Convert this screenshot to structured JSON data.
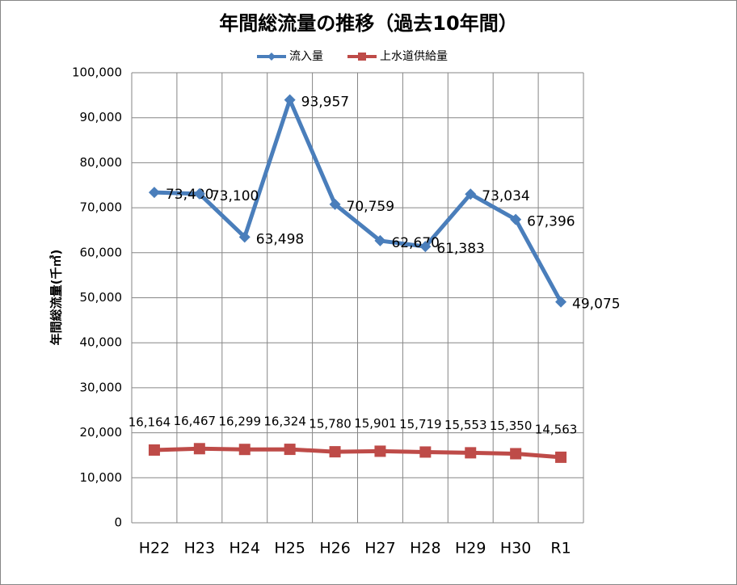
{
  "chart_data": {
    "type": "line",
    "title": "年間総流量の推移（過去10年間）",
    "y_label": "年間総流量(千㎥)",
    "categories": [
      "H22",
      "H23",
      "H24",
      "H25",
      "H26",
      "H27",
      "H28",
      "H29",
      "H30",
      "R1"
    ],
    "series": [
      {
        "name": "流入量",
        "color": "#4a7ebb",
        "marker": "diamond",
        "values": [
          73400,
          73100,
          63498,
          93957,
          70759,
          62670,
          61383,
          73034,
          67396,
          49075
        ],
        "value_labels": [
          "73,400",
          "73,100",
          "63,498",
          "93,957",
          "70,759",
          "62,670",
          "61,383",
          "73,034",
          "67,396",
          "49,075"
        ]
      },
      {
        "name": "上水道供給量",
        "color": "#be4b48",
        "marker": "square",
        "values": [
          16164,
          16467,
          16299,
          16324,
          15780,
          15901,
          15719,
          15553,
          15350,
          14563
        ],
        "value_labels": [
          "16,164",
          "16,467",
          "16,299",
          "16,324",
          "15,780",
          "15,901",
          "15,719",
          "15,553",
          "15,350",
          "14,563"
        ]
      }
    ],
    "ylim": [
      0,
      100000
    ],
    "yticks": [
      0,
      {
        "value": 10000,
        "label": "10,000"
      },
      {
        "value": 20000,
        "label": "20,000"
      },
      {
        "value": 30000,
        "label": "30,000"
      },
      {
        "value": 40000,
        "label": "40,000"
      },
      {
        "value": 50000,
        "label": "50,000"
      },
      {
        "value": 60000,
        "label": "60,000"
      },
      {
        "value": 70000,
        "label": "70,000"
      },
      {
        "value": 80000,
        "label": "80,000"
      },
      {
        "value": 90000,
        "label": "90,000"
      },
      {
        "value": 100000,
        "label": "100,000"
      }
    ],
    "grid": true,
    "legend": "top"
  }
}
